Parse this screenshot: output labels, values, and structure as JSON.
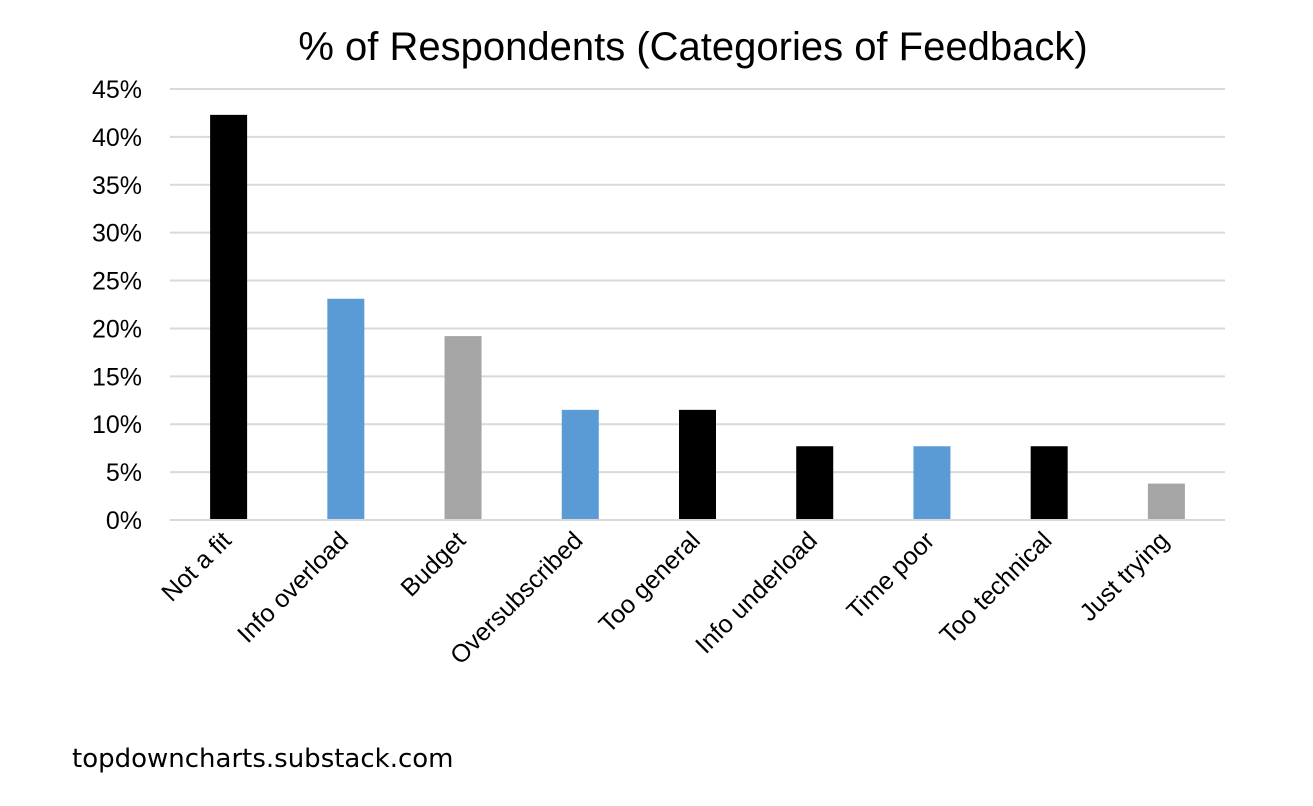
{
  "chart_data": {
    "type": "bar",
    "title": "% of Respondents (Categories of Feedback)",
    "xlabel": "",
    "ylabel": "",
    "categories": [
      "Not a fit",
      "Info overload",
      "Budget",
      "Oversubscribed",
      "Too general",
      "Info underload",
      "Time poor",
      "Too technical",
      "Just trying"
    ],
    "values": [
      42.3,
      23.1,
      19.2,
      11.5,
      11.5,
      7.7,
      7.7,
      7.7,
      3.8
    ],
    "bar_colors": [
      "#000000",
      "#5b9bd5",
      "#a5a5a5",
      "#5b9bd5",
      "#000000",
      "#000000",
      "#5b9bd5",
      "#000000",
      "#a5a5a5"
    ],
    "ylim": [
      0,
      45
    ],
    "yticks": [
      0,
      5,
      10,
      15,
      20,
      25,
      30,
      35,
      40,
      45
    ],
    "ytick_labels": [
      "0%",
      "5%",
      "10%",
      "15%",
      "20%",
      "25%",
      "30%",
      "35%",
      "40%",
      "45%"
    ],
    "grid": true,
    "gridline_color": "#d9d9d9",
    "legend": "none"
  },
  "source": "topdowncharts.substack.com"
}
